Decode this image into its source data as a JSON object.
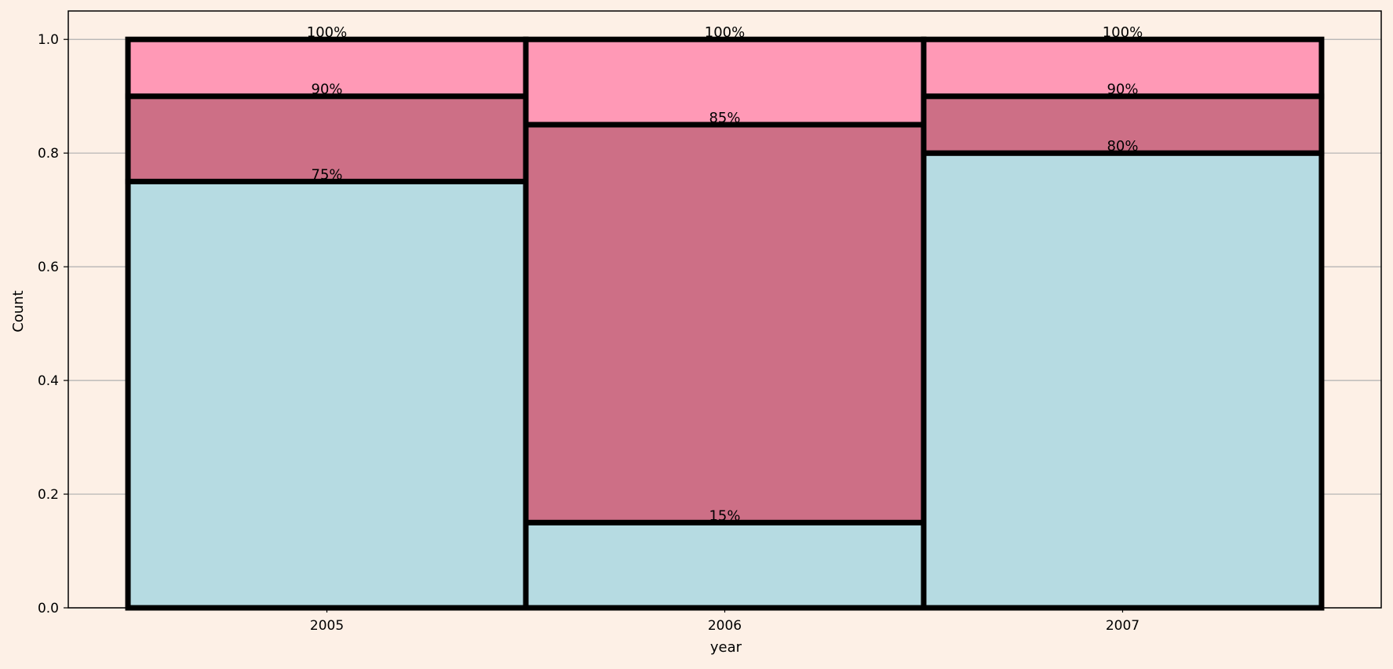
{
  "chart_data": {
    "type": "bar",
    "subtype": "stacked-100",
    "categories": [
      "2005",
      "2006",
      "2007"
    ],
    "series": [
      {
        "values": [
          0.75,
          0.15,
          0.8
        ],
        "color": "#b6dbe2"
      },
      {
        "values": [
          0.15,
          0.7,
          0.1
        ],
        "color": "#cd6f86"
      },
      {
        "values": [
          0.1,
          0.15,
          0.1
        ],
        "color": "#ff99b6"
      }
    ],
    "data_labels": [
      [
        "75%",
        "90%",
        "100%"
      ],
      [
        "15%",
        "85%",
        "100%"
      ],
      [
        "80%",
        "90%",
        "100%"
      ]
    ],
    "xlabel": "year",
    "ylabel": "Count",
    "ylim": [
      0,
      1.05
    ],
    "yticks": [
      0.0,
      0.2,
      0.4,
      0.6,
      0.8,
      1.0
    ],
    "ytick_labels": [
      "0.0",
      "0.2",
      "0.4",
      "0.6",
      "0.8",
      "1.0"
    ],
    "grid": "horizontal",
    "background": "#fdf0e6",
    "bar_edge_color": "#000000"
  }
}
